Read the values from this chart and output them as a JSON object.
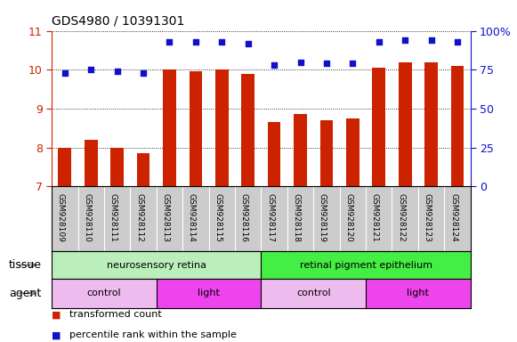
{
  "title": "GDS4980 / 10391301",
  "samples": [
    "GSM928109",
    "GSM928110",
    "GSM928111",
    "GSM928112",
    "GSM928113",
    "GSM928114",
    "GSM928115",
    "GSM928116",
    "GSM928117",
    "GSM928118",
    "GSM928119",
    "GSM928120",
    "GSM928121",
    "GSM928122",
    "GSM928123",
    "GSM928124"
  ],
  "bar_values": [
    8.0,
    8.2,
    8.0,
    7.85,
    10.0,
    9.95,
    10.0,
    9.9,
    8.65,
    8.85,
    8.7,
    8.75,
    10.05,
    10.2,
    10.2,
    10.1
  ],
  "dot_values": [
    73,
    75,
    74,
    73,
    93,
    93,
    93,
    92,
    78,
    80,
    79,
    79,
    93,
    94,
    94,
    93
  ],
  "ylim_left": [
    7,
    11
  ],
  "ylim_right": [
    0,
    100
  ],
  "yticks_left": [
    7,
    8,
    9,
    10,
    11
  ],
  "yticks_right": [
    0,
    25,
    50,
    75,
    100
  ],
  "right_tick_labels": [
    "0",
    "25",
    "50",
    "75",
    "100%"
  ],
  "bar_color": "#cc2200",
  "dot_color": "#1111cc",
  "tissue_groups": [
    {
      "label": "neurosensory retina",
      "start": 0,
      "end": 8,
      "color": "#bbeebb"
    },
    {
      "label": "retinal pigment epithelium",
      "start": 8,
      "end": 16,
      "color": "#44ee44"
    }
  ],
  "agent_groups": [
    {
      "label": "control",
      "start": 0,
      "end": 4,
      "color": "#eebbee"
    },
    {
      "label": "light",
      "start": 4,
      "end": 8,
      "color": "#ee44ee"
    },
    {
      "label": "control",
      "start": 8,
      "end": 12,
      "color": "#eebbee"
    },
    {
      "label": "light",
      "start": 12,
      "end": 16,
      "color": "#ee44ee"
    }
  ],
  "legend_items": [
    {
      "label": "transformed count",
      "color": "#cc2200",
      "marker": "s"
    },
    {
      "label": "percentile rank within the sample",
      "color": "#1111cc",
      "marker": "s"
    }
  ],
  "left_axis_color": "#cc2200",
  "right_axis_color": "#1111cc",
  "grid_color": "#888888",
  "sample_bg_color": "#cccccc",
  "tissue_label": "tissue",
  "agent_label": "agent",
  "bar_width": 0.5
}
